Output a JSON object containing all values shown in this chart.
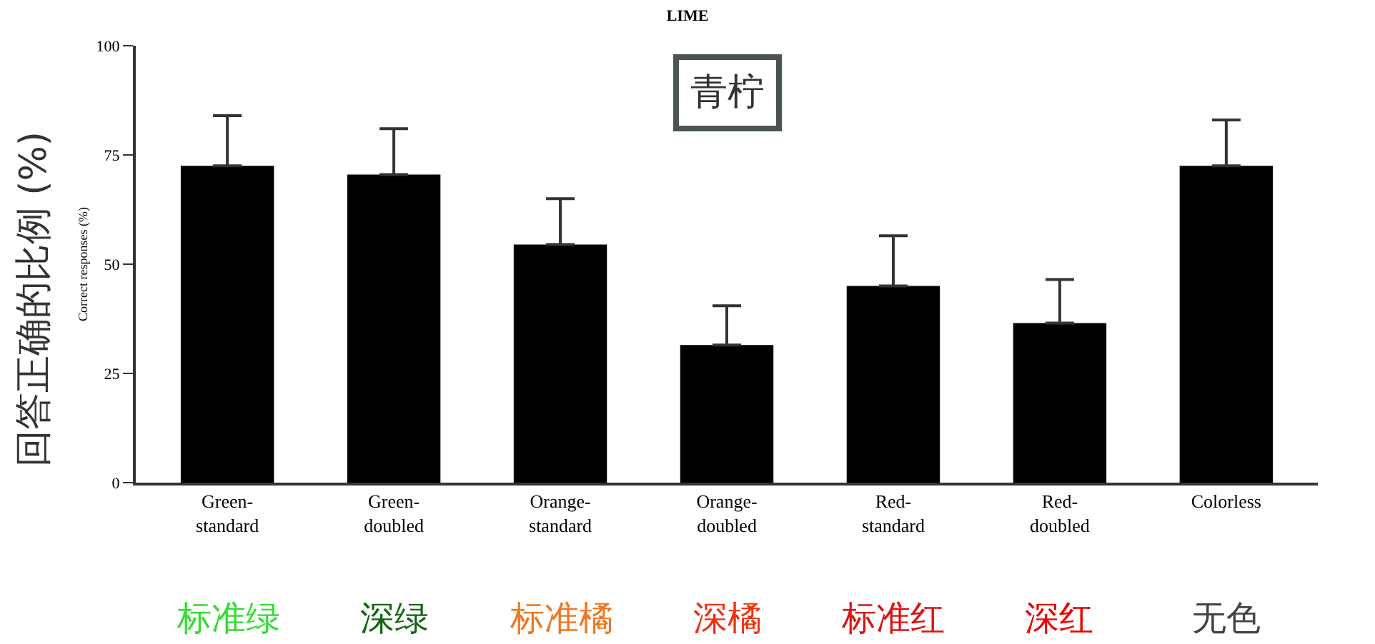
{
  "chart_data": {
    "type": "bar",
    "title": "LIME",
    "subtitle": "青柠",
    "ylabel": "Correct responses (%)",
    "categories": [
      "Green-\nstandard",
      "Green-\ndoubled",
      "Orange-\nstandard",
      "Orange-\ndoubled",
      "Red-\nstandard",
      "Red-\ndoubled",
      "Colorless"
    ],
    "values": [
      72.5,
      70.5,
      54.5,
      31.5,
      45,
      36.5,
      72.5
    ],
    "errors": [
      [
        72.5,
        84
      ],
      [
        70.5,
        81
      ],
      [
        54.5,
        65
      ],
      [
        31.5,
        40.5
      ],
      [
        45,
        56.5
      ],
      [
        36.5,
        46.5
      ],
      [
        72.5,
        83
      ]
    ],
    "color": "#000000",
    "ylim": [
      0,
      100
    ],
    "yticks": [
      0,
      25,
      50,
      75,
      100
    ],
    "legend": false,
    "annotations": [
      "回答正确的比例 (%)",
      "标准绿",
      "深绿",
      "标准橘",
      "深橘",
      "标准红",
      "深红",
      "无色"
    ]
  }
}
